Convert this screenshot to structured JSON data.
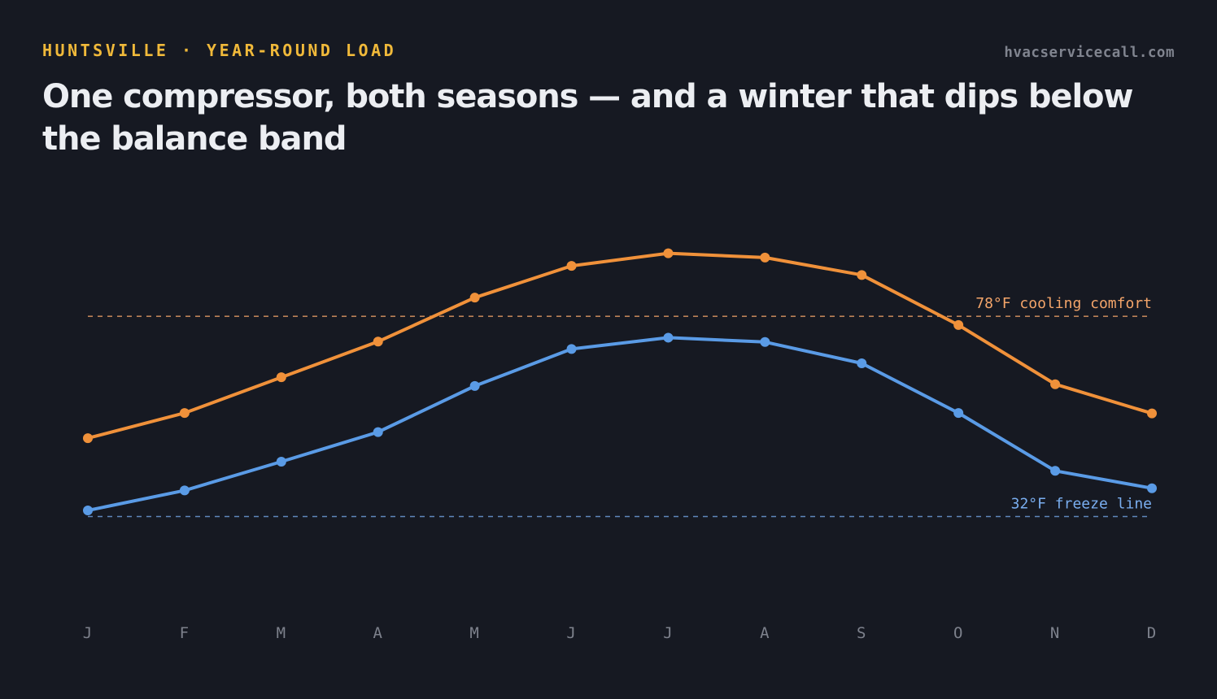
{
  "header": {
    "eyebrow": "HUNTSVILLE · YEAR-ROUND LOAD",
    "site": "hvacservicecall.com",
    "title": "One compressor, both seasons — and a winter that dips below the balance band"
  },
  "colors": {
    "background": "#161922",
    "eyebrow": "#f0b93a",
    "high_series": "#f0913a",
    "low_series": "#5a9be6",
    "cooling_reference": "#f4a56a",
    "freeze_reference": "#7aaef0",
    "tick_text": "#7d818c"
  },
  "chart_data": {
    "type": "line",
    "categories": [
      "J",
      "F",
      "M",
      "A",
      "M",
      "J",
      "J",
      "A",
      "S",
      "O",
      "N",
      "D"
    ],
    "series": [
      {
        "key": "high",
        "color": "#f0913a",
        "values": [
          50.0,
          55.8,
          64.0,
          72.2,
          82.3,
          89.6,
          92.5,
          91.5,
          87.5,
          76.0,
          62.4,
          55.7
        ]
      },
      {
        "key": "low",
        "color": "#5a9be6",
        "values": [
          33.4,
          38.0,
          44.6,
          51.4,
          62.0,
          70.5,
          73.1,
          72.1,
          67.2,
          55.8,
          42.5,
          38.5
        ]
      }
    ],
    "reference_lines": [
      {
        "value": 78,
        "label": "78°F cooling comfort",
        "color": "#f4a56a"
      },
      {
        "value": 32,
        "label": "32°F freeze line",
        "color": "#7aaef0"
      }
    ],
    "ylim": [
      8,
      104
    ],
    "grid": false,
    "legend": "none"
  }
}
